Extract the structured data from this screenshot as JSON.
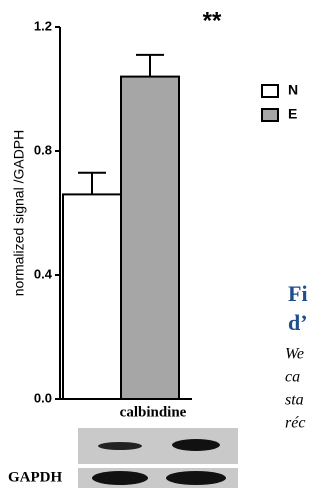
{
  "chart_data": {
    "type": "bar",
    "ylabel": "normalized signal /GADPH",
    "xlabel": "calbindine",
    "annotation": "**",
    "series": [
      {
        "name": "N",
        "color": "#ffffff",
        "values": [
          0.66
        ],
        "errors": [
          0.07
        ]
      },
      {
        "name": "E",
        "color": "#a6a6a6",
        "values": [
          1.04
        ],
        "errors": [
          0.07
        ]
      }
    ],
    "ylim": [
      0,
      1.2
    ],
    "yticks": [
      {
        "value": 0,
        "label": "0.0"
      },
      0.4,
      0.8,
      1.2
    ]
  },
  "blot_label": "GAPDH",
  "side_text": {
    "heading": [
      "Fi",
      "d’"
    ],
    "body": [
      "We",
      "ca",
      "sta",
      "réc"
    ]
  }
}
